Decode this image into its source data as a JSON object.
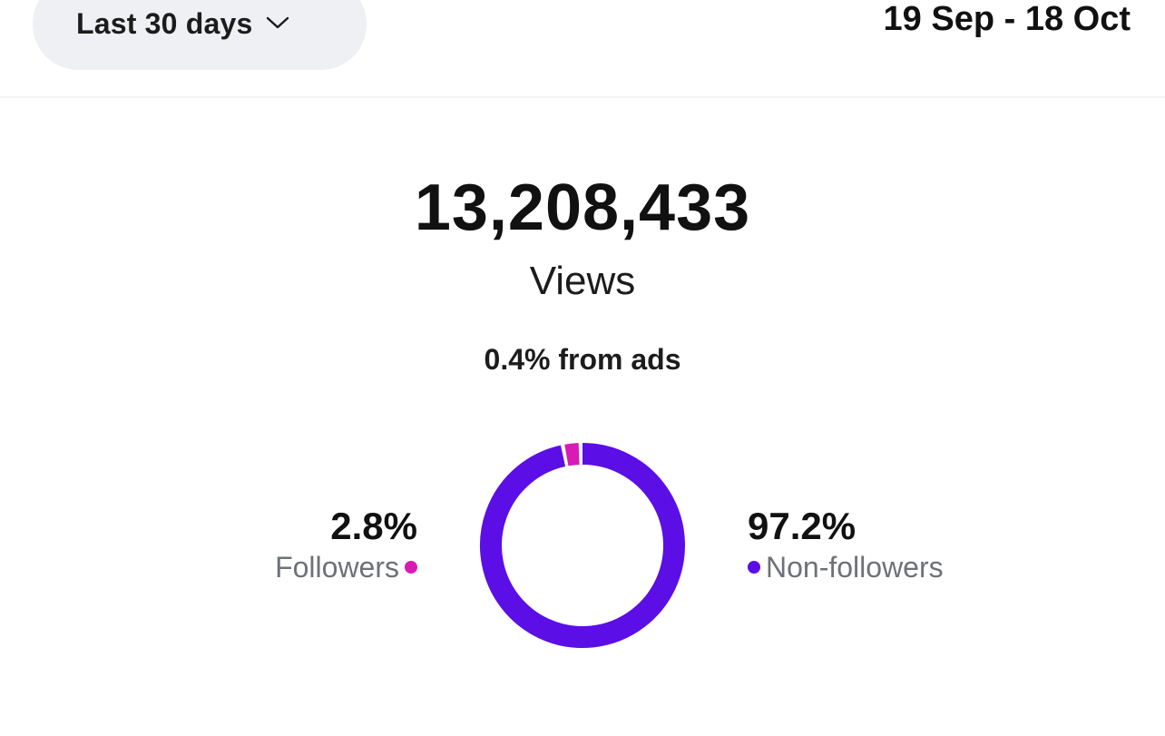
{
  "header": {
    "range_selector": {
      "label": "Last 30 days",
      "icon": "chevron-down-icon"
    },
    "date_range": "19 Sep - 18 Oct"
  },
  "summary": {
    "total_views": "13,208,433",
    "views_label": "Views",
    "ads_note": "0.4% from ads"
  },
  "breakdown": {
    "followers": {
      "percent": "2.8%",
      "label": "Followers",
      "value": 2.8,
      "color": "#d81bb5"
    },
    "non_followers": {
      "percent": "97.2%",
      "label": "Non-followers",
      "value": 97.2,
      "color": "#5b0ee6"
    }
  },
  "chart_data": {
    "type": "pie",
    "categories": [
      "Followers",
      "Non-followers"
    ],
    "values": [
      2.8,
      97.2
    ],
    "colors": [
      "#d81bb5",
      "#5b0ee6"
    ]
  }
}
